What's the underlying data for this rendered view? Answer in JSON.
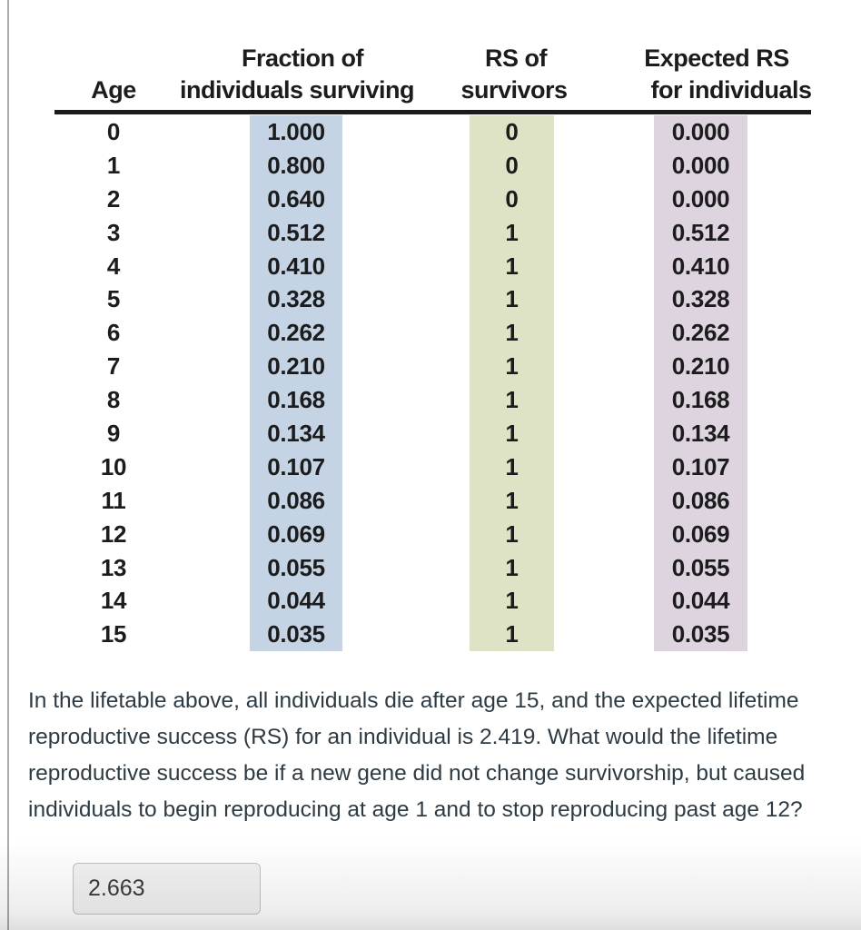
{
  "table": {
    "headers": {
      "col1_line2": "Age",
      "col2_line1": "Fraction of",
      "col2_line2": "individuals surviving",
      "col3_line1": "RS of",
      "col3_line2": "survivors",
      "col4_line1": "Expected RS",
      "col4_line2": "for individuals"
    },
    "rows": [
      {
        "age": "0",
        "fraction": "1.000",
        "rs": "0",
        "expected": "0.000"
      },
      {
        "age": "1",
        "fraction": "0.800",
        "rs": "0",
        "expected": "0.000"
      },
      {
        "age": "2",
        "fraction": "0.640",
        "rs": "0",
        "expected": "0.000"
      },
      {
        "age": "3",
        "fraction": "0.512",
        "rs": "1",
        "expected": "0.512"
      },
      {
        "age": "4",
        "fraction": "0.410",
        "rs": "1",
        "expected": "0.410"
      },
      {
        "age": "5",
        "fraction": "0.328",
        "rs": "1",
        "expected": "0.328"
      },
      {
        "age": "6",
        "fraction": "0.262",
        "rs": "1",
        "expected": "0.262"
      },
      {
        "age": "7",
        "fraction": "0.210",
        "rs": "1",
        "expected": "0.210"
      },
      {
        "age": "8",
        "fraction": "0.168",
        "rs": "1",
        "expected": "0.168"
      },
      {
        "age": "9",
        "fraction": "0.134",
        "rs": "1",
        "expected": "0.134"
      },
      {
        "age": "10",
        "fraction": "0.107",
        "rs": "1",
        "expected": "0.107"
      },
      {
        "age": "11",
        "fraction": "0.086",
        "rs": "1",
        "expected": "0.086"
      },
      {
        "age": "12",
        "fraction": "0.069",
        "rs": "1",
        "expected": "0.069"
      },
      {
        "age": "13",
        "fraction": "0.055",
        "rs": "1",
        "expected": "0.055"
      },
      {
        "age": "14",
        "fraction": "0.044",
        "rs": "1",
        "expected": "0.044"
      },
      {
        "age": "15",
        "fraction": "0.035",
        "rs": "1",
        "expected": "0.035"
      }
    ],
    "highlight_colors": {
      "fraction": "#c4d4e4",
      "rs": "#dee3c5",
      "expected": "#ddd4e0"
    }
  },
  "question": {
    "lines": [
      "In the lifetable above, all individuals die after age 15, and the expected lifetime",
      "reproductive success (RS) for an individual is 2.419. What would the lifetime",
      "reproductive success be if a new gene did not change survivorship, but caused",
      "individuals to begin reproducing at age 1 and to stop reproducing past age 12?"
    ]
  },
  "answer_input": {
    "value": "2.663"
  }
}
